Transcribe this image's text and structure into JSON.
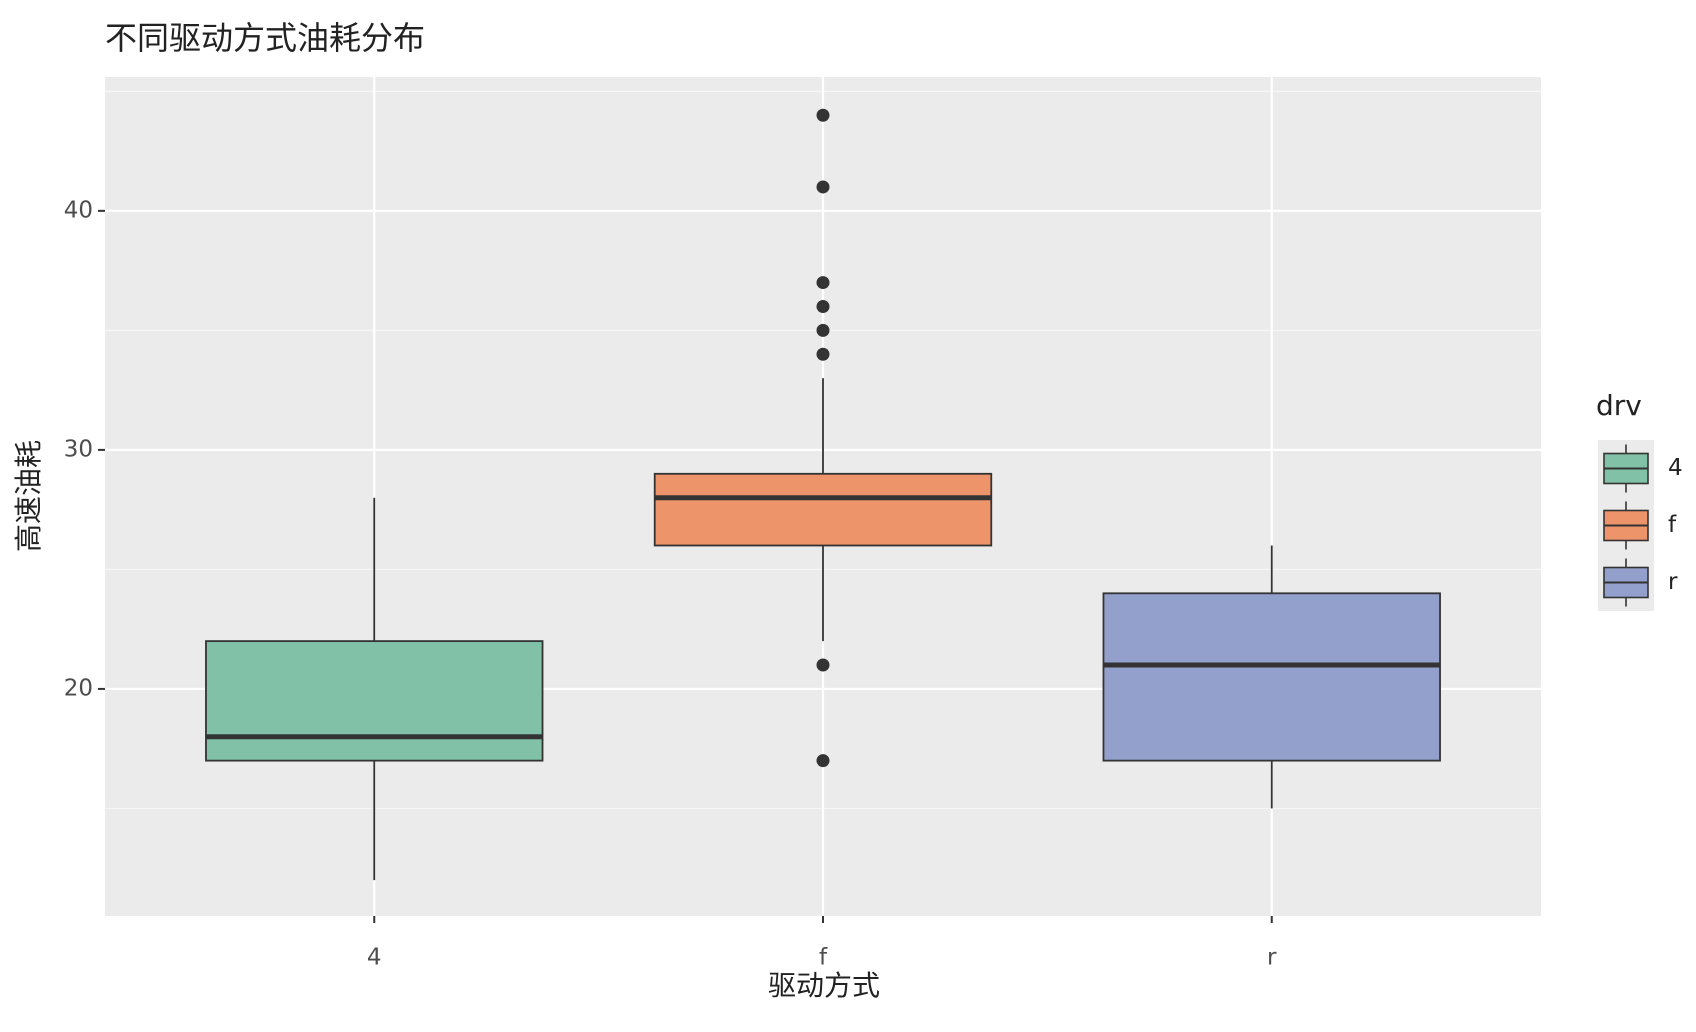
{
  "chart_data": {
    "type": "box",
    "title": "不同驱动方式油耗分布",
    "x_label": "驱动方式",
    "y_label": "高速油耗",
    "categories": [
      "4",
      "f",
      "r"
    ],
    "colors": [
      "#80c1a7",
      "#ee946b",
      "#93a0cb"
    ],
    "boxes": [
      {
        "min": 12,
        "q1": 17,
        "median": 18,
        "q3": 22,
        "max": 28,
        "outliers": []
      },
      {
        "min": 22,
        "q1": 26,
        "median": 28,
        "q3": 29,
        "max": 33,
        "outliers": [
          44,
          41,
          37,
          36,
          35,
          34,
          21,
          17
        ]
      },
      {
        "min": 15,
        "q1": 17,
        "median": 21,
        "q3": 24,
        "max": 26,
        "outliers": []
      }
    ],
    "ylim": [
      10.5,
      45.6
    ],
    "yticks": [
      20,
      30,
      40
    ],
    "minor_yticks": [
      15,
      25,
      35,
      45
    ],
    "grid": true,
    "legend": {
      "title": "drv",
      "position": "right"
    }
  }
}
